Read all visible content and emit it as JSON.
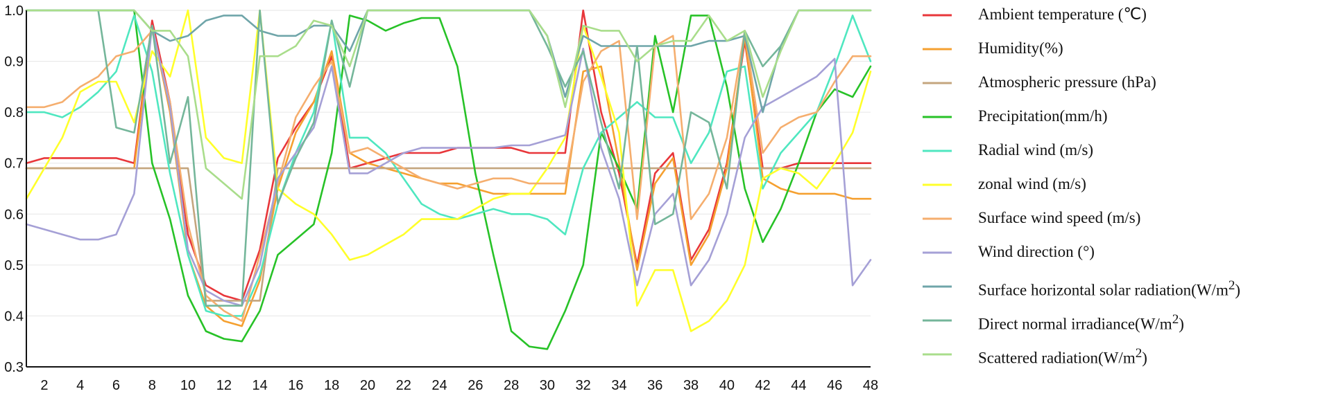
{
  "chart_data": {
    "type": "line",
    "title": "",
    "xlabel": "",
    "ylabel": "",
    "xlim": [
      1,
      48
    ],
    "ylim": [
      0.3,
      1.0
    ],
    "x_ticks": [
      "2",
      "4",
      "6",
      "8",
      "10",
      "12",
      "14",
      "16",
      "18",
      "20",
      "22",
      "24",
      "26",
      "28",
      "30",
      "32",
      "34",
      "36",
      "38",
      "40",
      "42",
      "44",
      "46",
      "48"
    ],
    "y_ticks": [
      "0.3",
      "0.4",
      "0.5",
      "0.6",
      "0.7",
      "0.8",
      "0.9",
      "1.0"
    ],
    "grid": "horizontal",
    "legend_position": "right",
    "x": [
      1,
      2,
      3,
      4,
      5,
      6,
      7,
      8,
      9,
      10,
      11,
      12,
      13,
      14,
      15,
      16,
      17,
      18,
      19,
      20,
      21,
      22,
      23,
      24,
      25,
      26,
      27,
      28,
      29,
      30,
      31,
      32,
      33,
      34,
      35,
      36,
      37,
      38,
      39,
      40,
      41,
      42,
      43,
      44,
      45,
      46,
      47,
      48
    ],
    "series": [
      {
        "name": "Ambient temperature (℃)",
        "name_html": "Ambient temperature (℃)",
        "color": "#e8363a",
        "values": [
          0.7,
          0.71,
          0.71,
          0.71,
          0.71,
          0.71,
          0.7,
          0.98,
          0.82,
          0.56,
          0.46,
          0.44,
          0.43,
          0.53,
          0.71,
          0.77,
          0.82,
          0.91,
          0.69,
          0.7,
          0.71,
          0.72,
          0.72,
          0.72,
          0.73,
          0.73,
          0.73,
          0.73,
          0.72,
          0.72,
          0.72,
          1.0,
          0.8,
          0.68,
          0.5,
          0.68,
          0.72,
          0.51,
          0.57,
          0.7,
          0.94,
          0.69,
          0.69,
          0.7,
          0.7,
          0.7,
          0.7,
          0.7
        ]
      },
      {
        "name": "Humidity(%)",
        "name_html": "Humidity(%)",
        "color": "#f5a030",
        "values": [
          0.69,
          0.69,
          0.69,
          0.69,
          0.69,
          0.69,
          0.69,
          0.97,
          0.8,
          0.52,
          0.42,
          0.39,
          0.38,
          0.47,
          0.65,
          0.76,
          0.82,
          0.92,
          0.72,
          0.7,
          0.69,
          0.68,
          0.67,
          0.66,
          0.66,
          0.65,
          0.64,
          0.64,
          0.64,
          0.64,
          0.64,
          0.88,
          0.89,
          0.7,
          0.49,
          0.66,
          0.71,
          0.5,
          0.56,
          0.69,
          0.95,
          0.67,
          0.65,
          0.64,
          0.64,
          0.64,
          0.63,
          0.63
        ]
      },
      {
        "name": "Atmospheric pressure (hPa)",
        "name_html": "Atmospheric pressure (hPa)",
        "color": "#c4a57e",
        "values": [
          0.69,
          0.69,
          0.69,
          0.69,
          0.69,
          0.69,
          0.69,
          0.69,
          0.69,
          0.69,
          0.43,
          0.43,
          0.43,
          0.43,
          0.69,
          0.69,
          0.69,
          0.69,
          0.69,
          0.69,
          0.69,
          0.69,
          0.69,
          0.69,
          0.69,
          0.69,
          0.69,
          0.69,
          0.69,
          0.69,
          0.69,
          0.69,
          0.69,
          0.69,
          0.69,
          0.69,
          0.69,
          0.69,
          0.69,
          0.69,
          0.69,
          0.69,
          0.69,
          0.69,
          0.69,
          0.69,
          0.69,
          0.69
        ]
      },
      {
        "name": "Precipitation(mm/h)",
        "name_html": "Precipitation(mm/h)",
        "color": "#27c227",
        "values": [
          1.0,
          1.0,
          1.0,
          1.0,
          1.0,
          1.0,
          1.0,
          0.7,
          0.59,
          0.44,
          0.37,
          0.355,
          0.35,
          0.41,
          0.52,
          0.55,
          0.58,
          0.72,
          0.99,
          0.98,
          0.96,
          0.975,
          0.985,
          0.985,
          0.89,
          0.68,
          0.52,
          0.37,
          0.34,
          0.335,
          0.41,
          0.5,
          0.76,
          0.69,
          0.61,
          0.95,
          0.8,
          0.99,
          0.99,
          0.85,
          0.65,
          0.545,
          0.61,
          0.7,
          0.8,
          0.845,
          0.83,
          0.89
        ]
      },
      {
        "name": "Radial wind (m/s)",
        "name_html": "Radial wind (m/s)",
        "color": "#4fe7c0",
        "values": [
          0.8,
          0.8,
          0.79,
          0.81,
          0.84,
          0.88,
          0.99,
          0.88,
          0.68,
          0.52,
          0.41,
          0.4,
          0.4,
          0.48,
          0.62,
          0.72,
          0.8,
          0.98,
          0.75,
          0.75,
          0.72,
          0.67,
          0.62,
          0.6,
          0.59,
          0.6,
          0.61,
          0.6,
          0.6,
          0.59,
          0.56,
          0.69,
          0.76,
          0.79,
          0.82,
          0.79,
          0.79,
          0.7,
          0.76,
          0.88,
          0.89,
          0.65,
          0.72,
          0.76,
          0.8,
          0.89,
          0.99,
          0.9
        ]
      },
      {
        "name": "zonal wind (m/s)",
        "name_html": "zonal wind (m/s)",
        "color": "#ffff2a",
        "values": [
          0.63,
          0.69,
          0.75,
          0.84,
          0.86,
          0.86,
          0.78,
          0.92,
          0.87,
          1.0,
          0.75,
          0.71,
          0.7,
          1.0,
          0.65,
          0.62,
          0.6,
          0.56,
          0.51,
          0.52,
          0.54,
          0.56,
          0.59,
          0.59,
          0.59,
          0.61,
          0.63,
          0.64,
          0.64,
          0.69,
          0.75,
          0.97,
          0.87,
          0.76,
          0.42,
          0.49,
          0.49,
          0.37,
          0.39,
          0.43,
          0.5,
          0.67,
          0.69,
          0.68,
          0.65,
          0.7,
          0.76,
          0.88
        ]
      },
      {
        "name": "Surface wind speed (m/s)",
        "name_html": "Surface wind speed (m/s)",
        "color": "#f5ae6e",
        "values": [
          0.81,
          0.81,
          0.82,
          0.85,
          0.87,
          0.91,
          0.92,
          0.96,
          0.82,
          0.58,
          0.44,
          0.41,
          0.39,
          0.52,
          0.66,
          0.79,
          0.85,
          0.9,
          0.72,
          0.73,
          0.71,
          0.69,
          0.67,
          0.66,
          0.65,
          0.66,
          0.67,
          0.67,
          0.66,
          0.66,
          0.66,
          0.86,
          0.92,
          0.94,
          0.59,
          0.93,
          0.95,
          0.59,
          0.64,
          0.75,
          0.96,
          0.72,
          0.77,
          0.79,
          0.8,
          0.86,
          0.91,
          0.91
        ]
      },
      {
        "name": "Wind direction (°)",
        "name_html": "Wind direction (°)",
        "color": "#a5a0d6",
        "values": [
          0.58,
          0.57,
          0.56,
          0.55,
          0.55,
          0.56,
          0.64,
          0.97,
          0.81,
          0.53,
          0.45,
          0.43,
          0.42,
          0.5,
          0.67,
          0.72,
          0.77,
          0.89,
          0.68,
          0.68,
          0.7,
          0.72,
          0.73,
          0.73,
          0.73,
          0.73,
          0.73,
          0.735,
          0.735,
          0.745,
          0.755,
          0.925,
          0.73,
          0.63,
          0.46,
          0.6,
          0.64,
          0.46,
          0.51,
          0.6,
          0.75,
          0.81,
          0.83,
          0.85,
          0.87,
          0.905,
          0.46,
          0.51
        ]
      },
      {
        "name": "Surface horizontal solar radiation(W/m2)",
        "name_html": "Surface horizontal solar radiation(W/m<sup>2</sup>)",
        "color": "#6fa5a9",
        "values": [
          1.0,
          1.0,
          1.0,
          1.0,
          1.0,
          1.0,
          1.0,
          0.96,
          0.94,
          0.95,
          0.98,
          0.99,
          0.99,
          0.96,
          0.95,
          0.95,
          0.97,
          0.97,
          0.92,
          1.0,
          1.0,
          1.0,
          1.0,
          1.0,
          1.0,
          1.0,
          1.0,
          1.0,
          1.0,
          0.95,
          0.83,
          0.95,
          0.93,
          0.93,
          0.93,
          0.93,
          0.93,
          0.93,
          0.94,
          0.94,
          0.95,
          0.8,
          0.93,
          1.0,
          1.0,
          1.0,
          1.0,
          1.0
        ]
      },
      {
        "name": "Direct normal irradiance(W/m2)",
        "name_html": "Direct normal irradiance(W/m<sup>2</sup>)",
        "color": "#74b69a",
        "values": [
          1.0,
          1.0,
          1.0,
          1.0,
          1.0,
          0.77,
          0.76,
          0.97,
          0.7,
          0.83,
          0.42,
          0.42,
          0.42,
          1.0,
          0.62,
          0.71,
          0.78,
          0.98,
          0.85,
          1.0,
          1.0,
          1.0,
          1.0,
          1.0,
          1.0,
          1.0,
          1.0,
          1.0,
          1.0,
          0.93,
          0.85,
          0.92,
          0.78,
          0.65,
          0.93,
          0.58,
          0.6,
          0.8,
          0.78,
          0.65,
          0.96,
          0.89,
          0.93,
          1.0,
          1.0,
          1.0,
          1.0,
          1.0
        ]
      },
      {
        "name": "Scattered radiation(W/m2)",
        "name_html": "Scattered radiation(W/m<sup>2</sup>)",
        "color": "#a9dd8b",
        "values": [
          1.0,
          1.0,
          1.0,
          1.0,
          1.0,
          1.0,
          1.0,
          0.96,
          0.96,
          0.91,
          0.69,
          0.66,
          0.63,
          0.91,
          0.91,
          0.93,
          0.98,
          0.97,
          0.89,
          1.0,
          1.0,
          1.0,
          1.0,
          1.0,
          1.0,
          1.0,
          1.0,
          1.0,
          1.0,
          0.95,
          0.81,
          0.97,
          0.96,
          0.96,
          0.9,
          0.93,
          0.94,
          0.94,
          0.99,
          0.94,
          0.96,
          0.83,
          0.92,
          1.0,
          1.0,
          1.0,
          1.0,
          1.0
        ]
      }
    ]
  }
}
